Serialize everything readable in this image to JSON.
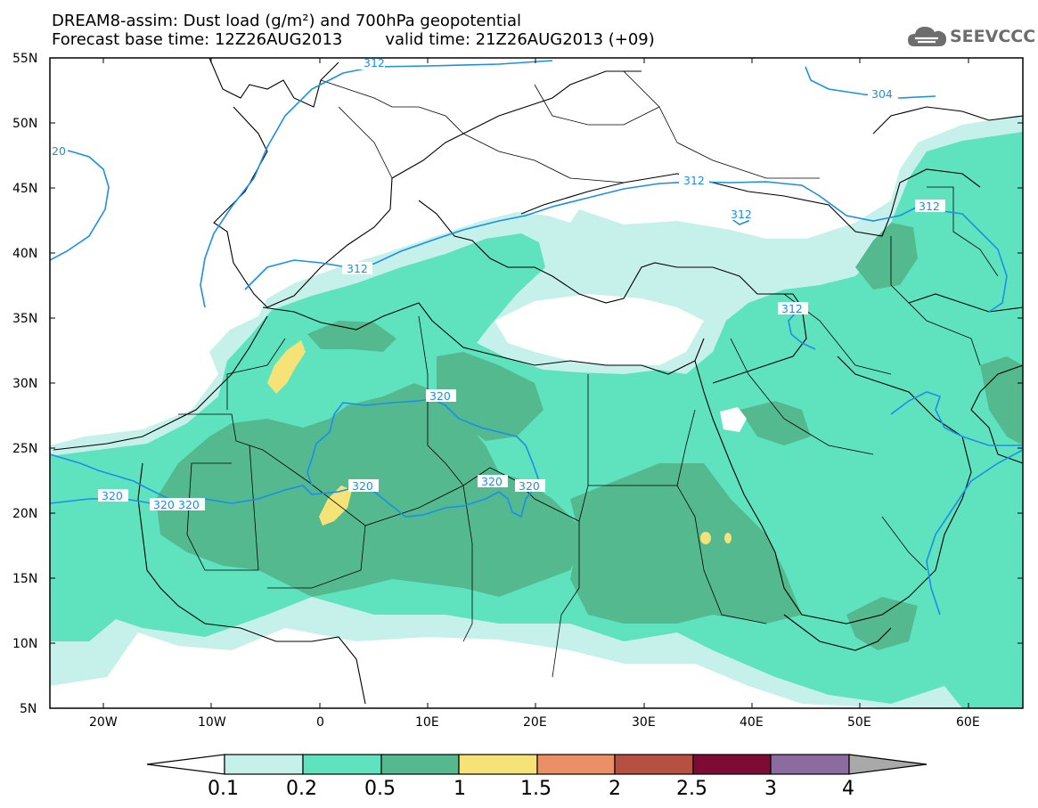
{
  "header": {
    "title_line1": "DREAM8-assim: Dust load (g/m²) and 700hPa geopotential",
    "forecast_base": "Forecast base time: 12Z26AUG2013",
    "valid_time": "valid time: 21Z26AUG2013 (+09)"
  },
  "logo": {
    "text": "SEEVCCC",
    "icon": "cloud-logo-icon"
  },
  "map": {
    "lat_labels": [
      "55N",
      "50N",
      "45N",
      "40N",
      "35N",
      "30N",
      "25N",
      "20N",
      "15N",
      "10N",
      "5N"
    ],
    "lon_labels": [
      "20W",
      "10W",
      "0",
      "10E",
      "20E",
      "30E",
      "40E",
      "50E",
      "60E"
    ],
    "contour_labels": [
      "312",
      "304",
      "312",
      "312",
      "312",
      "312",
      "320",
      "320",
      "320",
      "320",
      "320",
      "320",
      "312",
      "20",
      "320"
    ]
  },
  "colorbar": {
    "labels": [
      "0.1",
      "0.2",
      "0.5",
      "1",
      "1.5",
      "2",
      "2.5",
      "3",
      "4"
    ],
    "colors": [
      "#c6f1ea",
      "#5ee3be",
      "#54b98f",
      "#f5e378",
      "#eb8f67",
      "#b55042",
      "#7d0b33",
      "#8b6ba0",
      "#a9a9a9"
    ]
  },
  "colors": {
    "dust_01": "#c6f1ea",
    "dust_02": "#5ee3be",
    "dust_05": "#54b98f",
    "dust_1": "#f5e378",
    "contour": "#1b8fe6",
    "coast": "#000000"
  }
}
